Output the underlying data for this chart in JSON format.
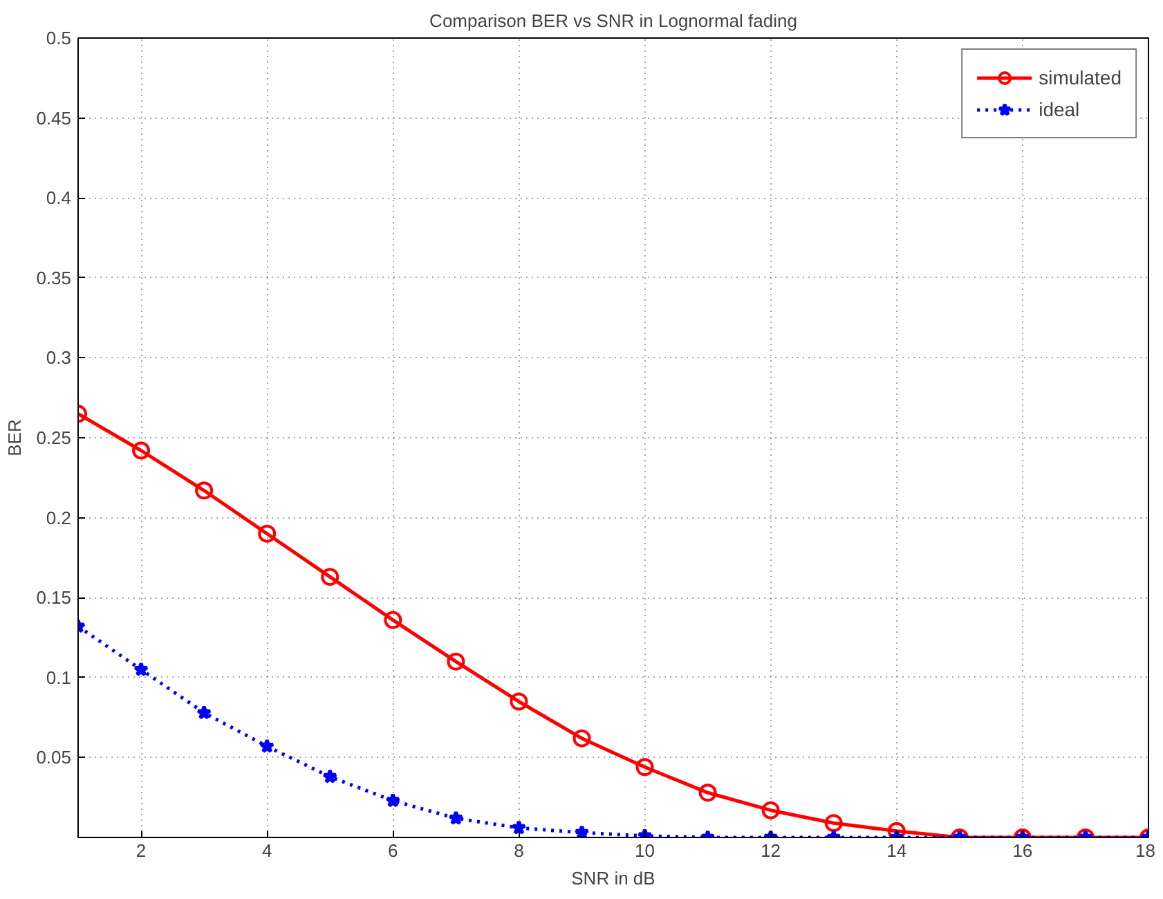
{
  "chart_data": {
    "type": "line",
    "title": "Comparison BER vs SNR in Lognormal fading",
    "xlabel": "SNR in dB",
    "ylabel": "BER",
    "x": [
      1,
      2,
      3,
      4,
      5,
      6,
      7,
      8,
      9,
      10,
      11,
      12,
      13,
      14,
      15,
      16,
      17,
      18
    ],
    "series": [
      {
        "name": "simulated",
        "color": "#ff0000",
        "marker": "circle",
        "line_style": "solid",
        "values": [
          0.265,
          0.242,
          0.217,
          0.19,
          0.163,
          0.136,
          0.11,
          0.085,
          0.062,
          0.044,
          0.028,
          0.017,
          0.009,
          0.004,
          0,
          0,
          0,
          0
        ]
      },
      {
        "name": "ideal",
        "color": "#0000ff",
        "marker": "star",
        "line_style": "dotted",
        "values": [
          0.132,
          0.105,
          0.078,
          0.057,
          0.038,
          0.023,
          0.012,
          0.006,
          0.003,
          0.001,
          0,
          0,
          0,
          0,
          0,
          0,
          0,
          0
        ]
      }
    ],
    "xlim": [
      1,
      18
    ],
    "ylim": [
      0,
      0.5
    ],
    "xticks": [
      2,
      4,
      6,
      8,
      10,
      12,
      14,
      16,
      18
    ],
    "yticks": [
      0.05,
      0.1,
      0.15,
      0.2,
      0.25,
      0.3,
      0.35,
      0.4,
      0.45,
      0.5
    ],
    "grid": true,
    "legend": "top right"
  }
}
